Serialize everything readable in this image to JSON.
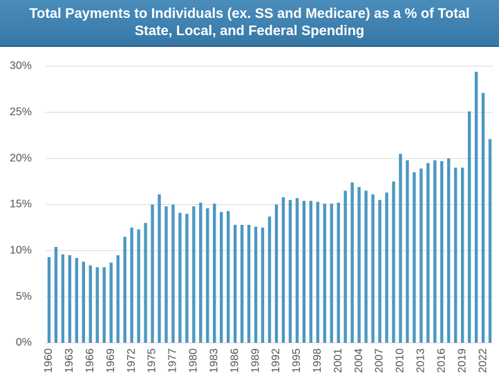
{
  "chart_data": {
    "type": "bar",
    "title": "Total Payments to Individuals (ex. SS and Medicare) as a % of Total State, Local, and Federal Spending",
    "categories": [
      "1960",
      null,
      null,
      "1963",
      null,
      null,
      "1966",
      null,
      null,
      "1969",
      null,
      null,
      "1972",
      null,
      null,
      "1975",
      null,
      null,
      "1977",
      null,
      null,
      "1980",
      null,
      null,
      "1983",
      null,
      null,
      "1986",
      null,
      null,
      "1989",
      null,
      null,
      "1992",
      null,
      null,
      "1995",
      null,
      null,
      "1998",
      null,
      null,
      "2001",
      null,
      null,
      "2004",
      null,
      null,
      "2007",
      null,
      null,
      "2010",
      null,
      null,
      "2013",
      null,
      null,
      "2016",
      null,
      null,
      "2019",
      null,
      null,
      "2022",
      null
    ],
    "values": [
      9.3,
      10.4,
      9.6,
      9.5,
      9.2,
      8.8,
      8.4,
      8.2,
      8.2,
      8.7,
      9.5,
      11.5,
      12.5,
      12.3,
      13.0,
      15.0,
      16.1,
      14.8,
      15.0,
      14.1,
      14.0,
      14.8,
      15.2,
      14.6,
      15.1,
      14.2,
      14.3,
      12.8,
      12.8,
      12.8,
      12.6,
      12.5,
      13.7,
      15.0,
      15.8,
      15.5,
      15.7,
      15.4,
      15.4,
      15.3,
      15.1,
      15.1,
      15.2,
      16.5,
      17.4,
      16.9,
      16.5,
      16.1,
      15.5,
      16.3,
      17.5,
      20.5,
      19.8,
      18.5,
      18.9,
      19.5,
      19.8,
      19.7,
      20.0,
      19.0,
      19.0,
      25.1,
      29.4,
      27.1,
      22.1
    ],
    "color": "#4b97c2",
    "ylim": [
      0,
      30
    ],
    "yticks": [
      {
        "value": 0,
        "label": "0%"
      },
      {
        "value": 5,
        "label": "5%"
      },
      {
        "value": 10,
        "label": "10%"
      },
      {
        "value": 15,
        "label": "15%"
      },
      {
        "value": 20,
        "label": "20%"
      },
      {
        "value": 25,
        "label": "25%"
      },
      {
        "value": 30,
        "label": "30%"
      }
    ],
    "grid": true
  }
}
